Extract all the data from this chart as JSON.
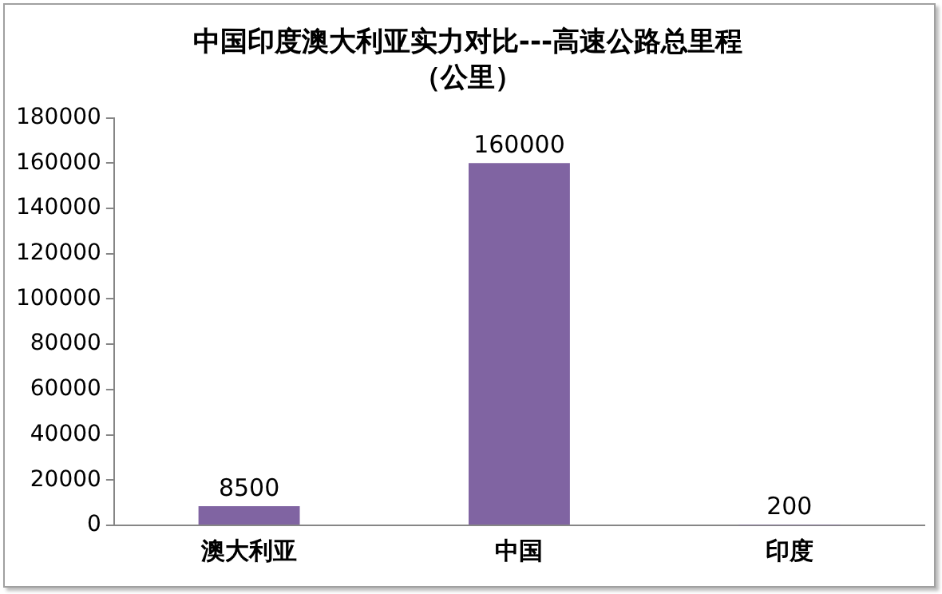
{
  "chart_data": {
    "type": "bar",
    "title": "中国印度澳大利亚实力对比---高速公路总里程",
    "subtitle": "（公里）",
    "categories": [
      "澳大利亚",
      "中国",
      "印度"
    ],
    "values": [
      8500,
      160000,
      200
    ],
    "color": "#8064a2",
    "ylim": [
      0,
      180000
    ],
    "yticks": [
      0,
      20000,
      40000,
      60000,
      80000,
      100000,
      120000,
      140000,
      160000,
      180000
    ],
    "grid": false,
    "legend": false,
    "data_labels": true
  }
}
